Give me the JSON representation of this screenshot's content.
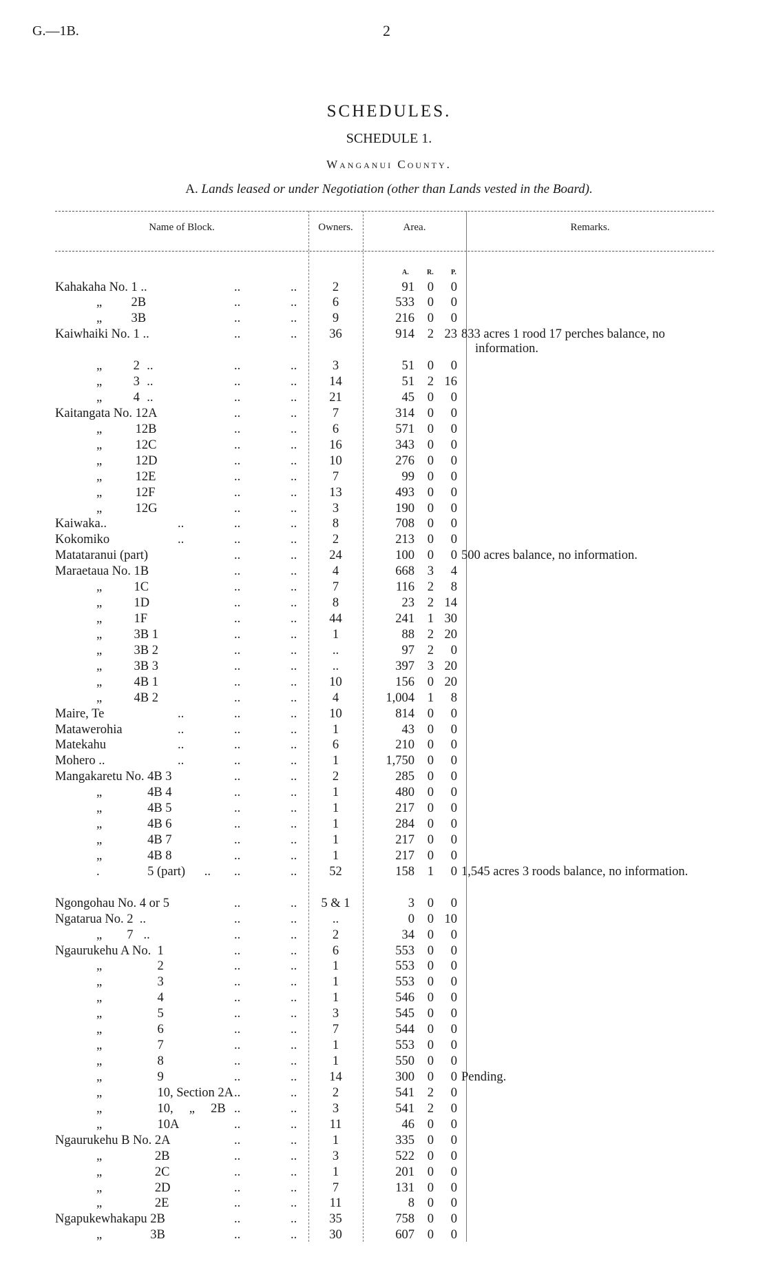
{
  "header": {
    "code": "G.—1B.",
    "page": "2"
  },
  "titles": {
    "main": "SCHEDULES.",
    "schedule": "SCHEDULE 1.",
    "county": "Wanganui County.",
    "section_letter": "A.",
    "section_text": "Lands leased or under Negotiation (other than Lands vested in the Board)."
  },
  "columns": {
    "name": "Name of Block.",
    "owners": "Owners.",
    "area": "Area.",
    "remarks": "Remarks.",
    "a": "A.",
    "r": "R.",
    "p": "P."
  },
  "leader": "..",
  "rows": [
    {
      "n": "Kahakaha No. ",
      "num": "1",
      "trail": " ..",
      "owners": "2",
      "a": "91",
      "r": "0",
      "p": "0"
    },
    {
      "ditto": "„",
      "num": "2B",
      "owners": "6",
      "a": "533",
      "r": "0",
      "p": "0"
    },
    {
      "ditto": "„",
      "num": "3B",
      "owners": "9",
      "a": "216",
      "r": "0",
      "p": "0"
    },
    {
      "n": "Kaiwhaiki No. ",
      "num": "1",
      "trail": " ..",
      "owners": "36",
      "a": "914",
      "r": "2",
      "p": "23",
      "remark": "833 acres 1 rood 17 perches balance, no information.",
      "tall": true
    },
    {
      "ditto": "„",
      "num": "2",
      "trail": " ..",
      "owners": "3",
      "a": "51",
      "r": "0",
      "p": "0"
    },
    {
      "ditto": "„",
      "num": "3",
      "trail": " ..",
      "owners": "14",
      "a": "51",
      "r": "2",
      "p": "16"
    },
    {
      "ditto": "„",
      "num": "4",
      "trail": " ..",
      "owners": "21",
      "a": "45",
      "r": "0",
      "p": "0"
    },
    {
      "n": "Kaitangata No. ",
      "num": "12A",
      "owners": "7",
      "a": "314",
      "r": "0",
      "p": "0"
    },
    {
      "ditto": "„",
      "num": "12B",
      "owners": "6",
      "a": "571",
      "r": "0",
      "p": "0"
    },
    {
      "ditto": "„",
      "num": "12C",
      "owners": "16",
      "a": "343",
      "r": "0",
      "p": "0"
    },
    {
      "ditto": "„",
      "num": "12D",
      "owners": "10",
      "a": "276",
      "r": "0",
      "p": "0"
    },
    {
      "ditto": "„",
      "num": "12E",
      "owners": "7",
      "a": "99",
      "r": "0",
      "p": "0"
    },
    {
      "ditto": "„",
      "num": "12F",
      "owners": "13",
      "a": "493",
      "r": "0",
      "p": "0"
    },
    {
      "ditto": "„",
      "num": "12G",
      "owners": "3",
      "a": "190",
      "r": "0",
      "p": "0"
    },
    {
      "n": "Kaiwaka..",
      "mid": "..",
      "owners": "8",
      "a": "708",
      "r": "0",
      "p": "0"
    },
    {
      "n": "Kokomiko",
      "mid": "..",
      "owners": "2",
      "a": "213",
      "r": "0",
      "p": "0"
    },
    {
      "n": "Matataranui (part)",
      "owners": "24",
      "a": "100",
      "r": "0",
      "p": "0",
      "remark": "500 acres balance, no information."
    },
    {
      "n": "Maraetaua No. ",
      "num": "1B",
      "owners": "4",
      "a": "668",
      "r": "3",
      "p": "4"
    },
    {
      "ditto": "„",
      "num": "1C",
      "owners": "7",
      "a": "116",
      "r": "2",
      "p": "8"
    },
    {
      "ditto": "„",
      "num": "1D",
      "owners": "8",
      "a": "23",
      "r": "2",
      "p": "14"
    },
    {
      "ditto": "„",
      "num": "1F",
      "owners": "44",
      "a": "241",
      "r": "1",
      "p": "30"
    },
    {
      "ditto": "„",
      "num": "3B 1",
      "owners": "1",
      "a": "88",
      "r": "2",
      "p": "20"
    },
    {
      "ditto": "„",
      "num": "3B 2",
      "owners": "..",
      "a": "97",
      "r": "2",
      "p": "0"
    },
    {
      "ditto": "„",
      "num": "3B 3",
      "owners": "..",
      "a": "397",
      "r": "3",
      "p": "20"
    },
    {
      "ditto": "„",
      "num": "4B 1",
      "owners": "10",
      "a": "156",
      "r": "0",
      "p": "20"
    },
    {
      "ditto": "„",
      "num": "4B 2",
      "owners": "4",
      "a": "1,004",
      "r": "1",
      "p": "8"
    },
    {
      "n": "Maire, Te",
      "mid": "..",
      "owners": "10",
      "a": "814",
      "r": "0",
      "p": "0"
    },
    {
      "n": "Matawerohia",
      "mid": "..",
      "owners": "1",
      "a": "43",
      "r": "0",
      "p": "0"
    },
    {
      "n": "Matekahu",
      "mid": "..",
      "owners": "6",
      "a": "210",
      "r": "0",
      "p": "0"
    },
    {
      "n": "Mohero ..",
      "mid": "..",
      "owners": "1",
      "a": "1,750",
      "r": "0",
      "p": "0"
    },
    {
      "n": "Mangakaretu No. ",
      "num": "4B 3",
      "owners": "2",
      "a": "285",
      "r": "0",
      "p": "0"
    },
    {
      "ditto": "„",
      "num": "4B 4",
      "owners": "1",
      "a": "480",
      "r": "0",
      "p": "0"
    },
    {
      "ditto": "„",
      "num": "4B 5",
      "owners": "1",
      "a": "217",
      "r": "0",
      "p": "0"
    },
    {
      "ditto": "„",
      "num": "4B 6",
      "owners": "1",
      "a": "284",
      "r": "0",
      "p": "0"
    },
    {
      "ditto": "„",
      "num": "4B 7",
      "owners": "1",
      "a": "217",
      "r": "0",
      "p": "0"
    },
    {
      "ditto": "„",
      "num": "4B 8",
      "owners": "1",
      "a": "217",
      "r": "0",
      "p": "0"
    },
    {
      "ditto": ".",
      "num": "5 (part)",
      "trail": " ..",
      "owners": "52",
      "a": "158",
      "r": "1",
      "p": "0",
      "remark": "1,545 acres 3 roods balance, no information.",
      "tall": true
    },
    {
      "n": "Ngongohau No. 4 or 5",
      "owners": "5 & 1",
      "a": "3",
      "r": "0",
      "p": "0"
    },
    {
      "n": "Ngatarua No. ",
      "num": "2",
      "trail": "  ..",
      "owners": "..",
      "a": "0",
      "r": "0",
      "p": "10"
    },
    {
      "ditto": "„",
      "num": "7",
      "trail": "  ..",
      "owners": "2",
      "a": "34",
      "r": "0",
      "p": "0"
    },
    {
      "n": "Ngaurukehu A No.  ",
      "num": "1",
      "owners": "6",
      "a": "553",
      "r": "0",
      "p": "0"
    },
    {
      "ditto": "„",
      "num": "2",
      "owners": "1",
      "a": "553",
      "r": "0",
      "p": "0"
    },
    {
      "ditto": "„",
      "num": "3",
      "owners": "1",
      "a": "553",
      "r": "0",
      "p": "0"
    },
    {
      "ditto": "„",
      "num": "4",
      "owners": "1",
      "a": "546",
      "r": "0",
      "p": "0"
    },
    {
      "ditto": "„",
      "num": "5",
      "owners": "3",
      "a": "545",
      "r": "0",
      "p": "0"
    },
    {
      "ditto": "„",
      "num": "6",
      "owners": "7",
      "a": "544",
      "r": "0",
      "p": "0"
    },
    {
      "ditto": "„",
      "num": "7",
      "owners": "1",
      "a": "553",
      "r": "0",
      "p": "0"
    },
    {
      "ditto": "„",
      "num": "8",
      "owners": "1",
      "a": "550",
      "r": "0",
      "p": "0"
    },
    {
      "ditto": "„",
      "num": "9",
      "owners": "14",
      "a": "300",
      "r": "0",
      "p": "0",
      "remark": "Pending."
    },
    {
      "ditto": "„",
      "num": "10, Section 2A",
      "owners": "2",
      "a": "541",
      "r": "2",
      "p": "0"
    },
    {
      "ditto": "„",
      "num": "10,     „     2B",
      "owners": "3",
      "a": "541",
      "r": "2",
      "p": "0"
    },
    {
      "ditto": "„",
      "num": "10A",
      "owners": "11",
      "a": "46",
      "r": "0",
      "p": "0"
    },
    {
      "n": "Ngaurukehu B No. ",
      "num": "2A",
      "owners": "1",
      "a": "335",
      "r": "0",
      "p": "0"
    },
    {
      "ditto": "„",
      "num": "2B",
      "owners": "3",
      "a": "522",
      "r": "0",
      "p": "0"
    },
    {
      "ditto": "„",
      "num": "2C",
      "owners": "1",
      "a": "201",
      "r": "0",
      "p": "0"
    },
    {
      "ditto": "„",
      "num": "2D",
      "owners": "7",
      "a": "131",
      "r": "0",
      "p": "0"
    },
    {
      "ditto": "„",
      "num": "2E",
      "owners": "11",
      "a": "8",
      "r": "0",
      "p": "0"
    },
    {
      "n": "Ngapukewhakapu ",
      "num": "2B",
      "owners": "35",
      "a": "758",
      "r": "0",
      "p": "0"
    },
    {
      "ditto": "„",
      "num": "3B",
      "owners": "30",
      "a": "607",
      "r": "0",
      "p": "0"
    }
  ]
}
